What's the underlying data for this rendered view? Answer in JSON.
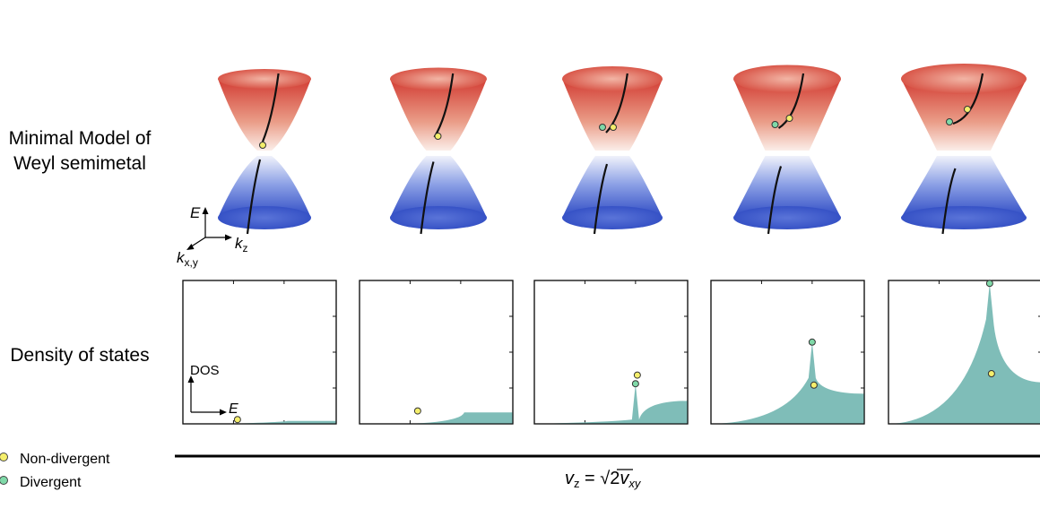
{
  "rows": {
    "top_line1": "Minimal Model of",
    "top_line2": "Weyl semimetal",
    "bottom": "Density of states"
  },
  "axes3d": {
    "energy": "E",
    "kz": "k",
    "kz_sub": "z",
    "kxy": "k",
    "kxy_sub": "x,y"
  },
  "dos_axes": {
    "y": "DOS",
    "x": "E"
  },
  "legend": {
    "non_divergent": "Non-divergent",
    "divergent": "Divergent"
  },
  "caption": {
    "v": "v",
    "v_sub": "z",
    "eq": " = ",
    "sqrt": "√2",
    "vxy": "v",
    "vxy_sub": "xy"
  },
  "colors": {
    "upper_cone_top": "#d9473a",
    "upper_cone_bottom": "#f6e3dc",
    "lower_cone_top": "#e6ebf8",
    "lower_cone_bottom": "#3150c9",
    "dos_fill": "#7fbdb8",
    "non_divergent": "#f5ef6c",
    "divergent": "#7fd9a8"
  },
  "panels": [
    {
      "tilt": 0.0,
      "dos_peak": 0.0,
      "dos_plateau": 0.02,
      "yellow_y": 0.03,
      "green": false
    },
    {
      "tilt": 0.25,
      "dos_peak": 0.0,
      "dos_plateau": 0.08,
      "yellow_y": 0.09,
      "green": false
    },
    {
      "tilt": 0.5,
      "dos_peak": 0.28,
      "dos_plateau": 0.16,
      "yellow_y": 0.34,
      "green_y": 0.28,
      "green": true
    },
    {
      "tilt": 0.75,
      "dos_peak": 0.57,
      "dos_plateau": 0.21,
      "yellow_y": 0.27,
      "green_y": 0.57,
      "green": true
    },
    {
      "tilt": 1.0,
      "dos_peak": 0.98,
      "dos_plateau": 0.29,
      "yellow_y": 0.35,
      "green_y": 0.98,
      "green": true
    }
  ]
}
